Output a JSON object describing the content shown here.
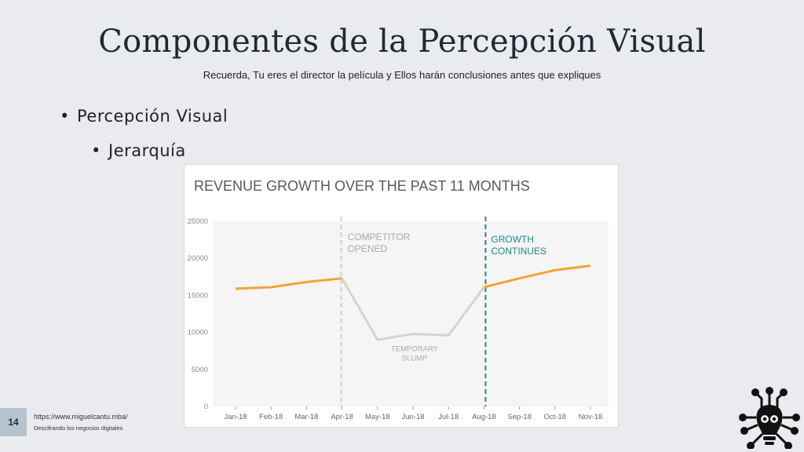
{
  "slide": {
    "title": "Componentes de la Percepción Visual",
    "subtitle": "Recuerda, Tu eres el director la película y Ellos harán conclusiones antes que expliques",
    "bullet_level1": "Percepción Visual",
    "bullet_level2": "Jerarquía",
    "bullet_char": "•",
    "page_number": "14",
    "footer_url": "https://www.miguelcantu.mba/",
    "footer_tagline": "Descifrando los negocios digitales",
    "logo_icon": "brain-circuit-icon"
  },
  "chart_data": {
    "type": "line",
    "title": "REVENUE GROWTH OVER THE PAST 11 MONTHS",
    "categories": [
      "Jan-18",
      "Feb-18",
      "Mar-18",
      "Apr-18",
      "May-18",
      "Jun-18",
      "Jul-18",
      "Aug-18",
      "Sep-18",
      "Oct-18",
      "Nov-18"
    ],
    "values": [
      15900,
      16100,
      16800,
      17300,
      9000,
      9800,
      9600,
      16100,
      17300,
      18400,
      19000
    ],
    "ylim": [
      0,
      25000
    ],
    "yticks": [
      "0",
      "5000",
      "10000",
      "15000",
      "20000",
      "25000"
    ],
    "grid": false,
    "colors": {
      "growth": "#f0a632",
      "slump": "#d9d2cc",
      "competitor_line": "#cfcfcf",
      "growth_line": "#1f8a8a"
    },
    "annotations": {
      "competitor": [
        "COMPETITOR",
        "OPENED"
      ],
      "slump": [
        "TEMPORARY",
        "SLUMP"
      ],
      "growth": [
        "GROWTH",
        "CONTINUES"
      ]
    }
  }
}
